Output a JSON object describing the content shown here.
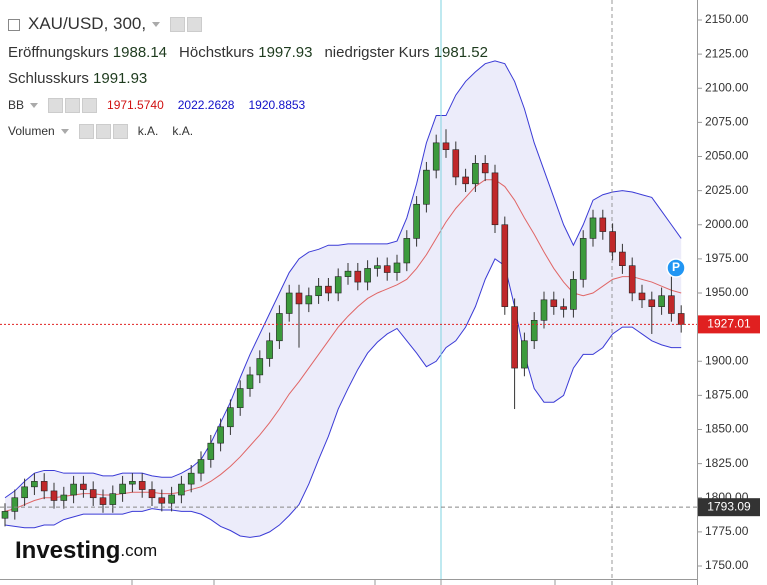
{
  "header": {
    "symbol": "XAU/USD, 300,",
    "open_label": "Eröffnungskurs",
    "open_value": "1988.14",
    "high_label": "Höchstkurs",
    "high_value": "1997.93",
    "low_label": "niedrigster Kurs",
    "low_value": "1981.52",
    "close_label": "Schlusskurs",
    "close_value": "1991.93",
    "bb_label": "BB",
    "bb_middle": "1971.5740",
    "bb_upper": "2022.2628",
    "bb_lower": "1920.8853",
    "volume_label": "Volumen",
    "volume_values": [
      "k.A.",
      "k.A."
    ]
  },
  "chart_data": {
    "type": "candlestick",
    "open": [
      1785,
      1790,
      1800,
      1808,
      1812,
      1805,
      1798,
      1802,
      1810,
      1806,
      1800,
      1795,
      1803,
      1810,
      1812,
      1806,
      1800,
      1796,
      1802,
      1810,
      1818,
      1828,
      1840,
      1852,
      1866,
      1880,
      1890,
      1902,
      1915,
      1935,
      1950,
      1942,
      1948,
      1955,
      1950,
      1962,
      1966,
      1958,
      1968,
      1970,
      1965,
      1972,
      1990,
      2015,
      2040,
      2060,
      2055,
      2035,
      2030,
      2045,
      2038,
      2000,
      1940,
      1895,
      1915,
      1930,
      1945,
      1940,
      1938,
      1960,
      1990,
      2005,
      1995,
      1980,
      1970,
      1950,
      1945,
      1940,
      1948,
      1935
    ],
    "high": [
      1796,
      1806,
      1814,
      1818,
      1818,
      1811,
      1808,
      1816,
      1816,
      1812,
      1806,
      1809,
      1816,
      1818,
      1818,
      1812,
      1806,
      1808,
      1816,
      1824,
      1834,
      1846,
      1858,
      1872,
      1886,
      1896,
      1908,
      1921,
      1941,
      1956,
      1956,
      1954,
      1961,
      1961,
      1968,
      1972,
      1972,
      1974,
      1976,
      1976,
      1978,
      1996,
      2021,
      2046,
      2066,
      2070,
      2061,
      2041,
      2051,
      2051,
      2044,
      2006,
      1946,
      1921,
      1936,
      1951,
      1951,
      1946,
      1966,
      1996,
      2011,
      2011,
      2001,
      1986,
      1976,
      1956,
      1951,
      1954,
      1962,
      1941
    ],
    "low": [
      1779,
      1784,
      1794,
      1802,
      1799,
      1792,
      1792,
      1796,
      1800,
      1794,
      1789,
      1789,
      1797,
      1804,
      1800,
      1794,
      1790,
      1790,
      1796,
      1804,
      1812,
      1822,
      1834,
      1846,
      1860,
      1874,
      1884,
      1896,
      1909,
      1929,
      1910,
      1936,
      1942,
      1944,
      1944,
      1956,
      1952,
      1952,
      1962,
      1959,
      1959,
      1966,
      1984,
      2009,
      2034,
      2049,
      2029,
      2024,
      2024,
      2032,
      1994,
      1934,
      1865,
      1889,
      1909,
      1924,
      1934,
      1932,
      1932,
      1954,
      1984,
      1989,
      1974,
      1964,
      1944,
      1939,
      1920,
      1934,
      1929,
      1921
    ],
    "close": [
      1790,
      1800,
      1808,
      1812,
      1805,
      1798,
      1802,
      1810,
      1806,
      1800,
      1795,
      1803,
      1810,
      1812,
      1806,
      1800,
      1796,
      1802,
      1810,
      1818,
      1828,
      1840,
      1852,
      1866,
      1880,
      1890,
      1902,
      1915,
      1935,
      1950,
      1942,
      1948,
      1955,
      1950,
      1962,
      1966,
      1958,
      1968,
      1970,
      1965,
      1972,
      1990,
      2015,
      2040,
      2060,
      2055,
      2035,
      2030,
      2045,
      2038,
      2000,
      1940,
      1895,
      1915,
      1930,
      1945,
      1940,
      1938,
      1960,
      1990,
      2005,
      1995,
      1980,
      1970,
      1950,
      1945,
      1940,
      1948,
      1935,
      1927
    ],
    "bb_upper": [
      1800,
      1805,
      1812,
      1818,
      1820,
      1820,
      1818,
      1818,
      1818,
      1818,
      1816,
      1816,
      1818,
      1818,
      1818,
      1816,
      1815,
      1815,
      1818,
      1822,
      1828,
      1840,
      1855,
      1870,
      1888,
      1905,
      1920,
      1935,
      1950,
      1965,
      1975,
      1980,
      1982,
      1985,
      1985,
      1986,
      1986,
      1986,
      1986,
      1986,
      1988,
      2005,
      2030,
      2060,
      2080,
      2080,
      2095,
      2105,
      2112,
      2118,
      2120,
      2118,
      2105,
      2085,
      2060,
      2040,
      2020,
      2000,
      1985,
      2000,
      2018,
      2022,
      2024,
      2025,
      2024,
      2022,
      2020,
      2010,
      2000,
      1990
    ],
    "bb_middle": [
      1790,
      1792,
      1795,
      1798,
      1800,
      1800,
      1801,
      1802,
      1803,
      1803,
      1802,
      1802,
      1803,
      1804,
      1804,
      1804,
      1803,
      1803,
      1804,
      1806,
      1808,
      1812,
      1817,
      1823,
      1830,
      1838,
      1846,
      1855,
      1865,
      1876,
      1885,
      1895,
      1905,
      1915,
      1925,
      1933,
      1940,
      1946,
      1950,
      1953,
      1956,
      1960,
      1968,
      1978,
      1990,
      2002,
      2012,
      2020,
      2028,
      2033,
      2033,
      2028,
      2018,
      2005,
      1993,
      1980,
      1968,
      1958,
      1950,
      1948,
      1950,
      1955,
      1960,
      1962,
      1962,
      1960,
      1958,
      1955,
      1952,
      1950
    ],
    "bb_lower": [
      1780,
      1779,
      1778,
      1778,
      1780,
      1780,
      1784,
      1786,
      1788,
      1788,
      1788,
      1788,
      1788,
      1790,
      1790,
      1792,
      1791,
      1791,
      1790,
      1790,
      1788,
      1784,
      1779,
      1776,
      1772,
      1771,
      1772,
      1775,
      1780,
      1787,
      1795,
      1810,
      1828,
      1845,
      1865,
      1880,
      1894,
      1906,
      1914,
      1920,
      1924,
      1915,
      1906,
      1896,
      1900,
      1910,
      1915,
      1925,
      1940,
      1960,
      1975,
      1970,
      1940,
      1905,
      1880,
      1870,
      1870,
      1875,
      1895,
      1905,
      1905,
      1910,
      1920,
      1925,
      1925,
      1920,
      1915,
      1912,
      1910,
      1910
    ],
    "up_color": "#3c9a3c",
    "down_color": "#c0282a",
    "band_color": "#3b3bd6",
    "middle_color": "#e06666",
    "band_fill": "rgba(130,130,220,0.15)",
    "ylim": [
      1750,
      2150
    ],
    "yticks": [
      {
        "value": 1750,
        "label": "1750.00"
      },
      {
        "value": 1775,
        "label": "1775.00"
      },
      {
        "value": 1800,
        "label": "1800.00"
      },
      {
        "value": 1825,
        "label": "1825.00"
      },
      {
        "value": 1850,
        "label": "1850.00"
      },
      {
        "value": 1875,
        "label": "1875.00"
      },
      {
        "value": 1900,
        "label": "1900.00"
      },
      {
        "value": 1925,
        "label": "1925.00"
      },
      {
        "value": 1950,
        "label": "1950.00"
      },
      {
        "value": 1975,
        "label": "1975.00"
      },
      {
        "value": 2000,
        "label": "2000.00"
      },
      {
        "value": 2025,
        "label": "2025.00"
      },
      {
        "value": 2050,
        "label": "2050.00"
      },
      {
        "value": 2075,
        "label": "2075.00"
      },
      {
        "value": 2100,
        "label": "2100.00"
      },
      {
        "value": 2125,
        "label": "2125.00"
      },
      {
        "value": 2150,
        "label": "2150.00"
      }
    ],
    "last_price": 1927.01,
    "crosshair_price": 1793.09,
    "marker_label": "P",
    "logo": [
      "Investing",
      ".com"
    ]
  }
}
